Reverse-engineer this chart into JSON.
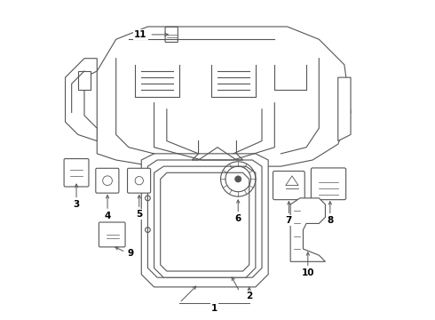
{
  "background_color": "#ffffff",
  "line_color": "#555555",
  "label_color": "#000000",
  "fig_width": 4.9,
  "fig_height": 3.6,
  "dpi": 100
}
